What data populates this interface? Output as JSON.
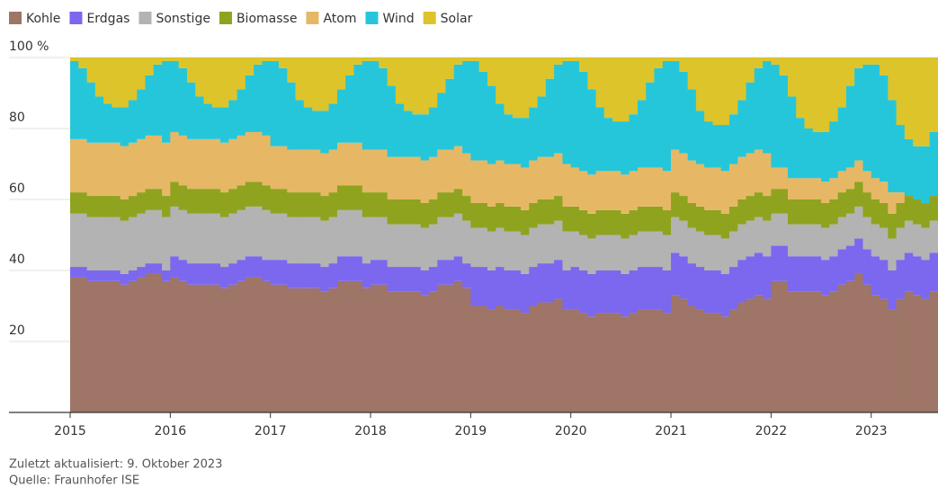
{
  "chart_data": {
    "type": "stacked-step-area",
    "series": [
      {
        "name": "Kohle",
        "color": "#9e7566",
        "values": [
          38,
          38,
          37,
          37,
          37,
          37,
          36,
          37,
          38,
          39,
          39,
          37,
          38,
          37,
          36,
          36,
          36,
          36,
          35,
          36,
          37,
          38,
          38,
          37,
          36,
          36,
          35,
          35,
          35,
          35,
          34,
          35,
          37,
          37,
          37,
          35,
          36,
          36,
          34,
          34,
          34,
          34,
          33,
          34,
          36,
          36,
          37,
          35,
          30,
          30,
          29,
          30,
          29,
          29,
          28,
          30,
          31,
          31,
          32,
          29,
          29,
          28,
          27,
          28,
          28,
          28,
          27,
          28,
          29,
          29,
          29,
          28,
          33,
          32,
          30,
          29,
          28,
          28,
          27,
          29,
          31,
          32,
          33,
          32,
          37,
          37,
          34,
          34,
          34,
          34,
          33,
          34,
          36,
          37,
          39,
          36,
          33,
          32,
          29,
          32,
          34,
          33,
          32,
          34
        ]
      },
      {
        "name": "Erdgas",
        "color": "#7b68ee",
        "values": [
          3,
          3,
          3,
          3,
          3,
          3,
          3,
          3,
          3,
          3,
          3,
          3,
          6,
          6,
          6,
          6,
          6,
          6,
          6,
          6,
          6,
          6,
          6,
          6,
          7,
          7,
          7,
          7,
          7,
          7,
          7,
          7,
          7,
          7,
          7,
          7,
          7,
          7,
          7,
          7,
          7,
          7,
          7,
          7,
          7,
          7,
          7,
          7,
          11,
          11,
          11,
          11,
          11,
          11,
          11,
          11,
          11,
          11,
          11,
          11,
          12,
          12,
          12,
          12,
          12,
          12,
          12,
          12,
          12,
          12,
          12,
          12,
          12,
          12,
          12,
          12,
          12,
          12,
          12,
          12,
          12,
          12,
          12,
          12,
          10,
          10,
          10,
          10,
          10,
          10,
          10,
          10,
          10,
          10,
          10,
          10,
          11,
          11,
          11,
          11,
          11,
          11,
          11,
          11
        ]
      },
      {
        "name": "Sonstige",
        "color": "#b3b3b3",
        "values": [
          15,
          15,
          15,
          15,
          15,
          15,
          15,
          15,
          15,
          15,
          15,
          15,
          14,
          14,
          14,
          14,
          14,
          14,
          14,
          14,
          14,
          14,
          14,
          14,
          13,
          13,
          13,
          13,
          13,
          13,
          13,
          13,
          13,
          13,
          13,
          13,
          12,
          12,
          12,
          12,
          12,
          12,
          12,
          12,
          12,
          12,
          12,
          12,
          11,
          11,
          11,
          11,
          11,
          11,
          11,
          11,
          11,
          11,
          11,
          11,
          10,
          10,
          10,
          10,
          10,
          10,
          10,
          10,
          10,
          10,
          10,
          10,
          10,
          10,
          10,
          10,
          10,
          10,
          10,
          10,
          10,
          10,
          10,
          10,
          9,
          9,
          9,
          9,
          9,
          9,
          9,
          9,
          9,
          9,
          9,
          9,
          9,
          9,
          9,
          9,
          9,
          9,
          9,
          9
        ]
      },
      {
        "name": "Biomasse",
        "color": "#8fa31f",
        "values": [
          6,
          6,
          6,
          6,
          6,
          6,
          6,
          6,
          6,
          6,
          6,
          6,
          7,
          7,
          7,
          7,
          7,
          7,
          7,
          7,
          7,
          7,
          7,
          7,
          7,
          7,
          7,
          7,
          7,
          7,
          7,
          7,
          7,
          7,
          7,
          7,
          7,
          7,
          7,
          7,
          7,
          7,
          7,
          7,
          7,
          7,
          7,
          7,
          7,
          7,
          7,
          7,
          7,
          7,
          7,
          7,
          7,
          7,
          7,
          7,
          7,
          7,
          7,
          7,
          7,
          7,
          7,
          7,
          7,
          7,
          7,
          7,
          7,
          7,
          7,
          7,
          7,
          7,
          7,
          7,
          7,
          7,
          7,
          7,
          7,
          7,
          7,
          7,
          7,
          7,
          7,
          7,
          7,
          7,
          7,
          7,
          7,
          7,
          7,
          7,
          7,
          7,
          7,
          7
        ]
      },
      {
        "name": "Atom",
        "color": "#e6b865",
        "values": [
          15,
          15,
          15,
          15,
          15,
          15,
          15,
          15,
          15,
          15,
          15,
          15,
          14,
          14,
          14,
          14,
          14,
          14,
          14,
          14,
          14,
          14,
          14,
          14,
          12,
          12,
          12,
          12,
          12,
          12,
          12,
          12,
          12,
          12,
          12,
          12,
          12,
          12,
          12,
          12,
          12,
          12,
          12,
          12,
          12,
          12,
          12,
          12,
          12,
          12,
          12,
          12,
          12,
          12,
          12,
          12,
          12,
          12,
          12,
          12,
          11,
          11,
          11,
          11,
          11,
          11,
          11,
          11,
          11,
          11,
          11,
          11,
          12,
          12,
          12,
          12,
          12,
          12,
          12,
          12,
          12,
          12,
          12,
          12,
          6,
          6,
          6,
          6,
          6,
          6,
          6,
          6,
          6,
          6,
          6,
          6,
          6,
          6,
          6,
          3,
          0,
          0,
          0,
          0
        ]
      },
      {
        "name": "Wind",
        "color": "#26c6da",
        "values": [
          22,
          20,
          17,
          13,
          11,
          10,
          11,
          12,
          14,
          17,
          20,
          23,
          20,
          19,
          16,
          12,
          10,
          9,
          10,
          11,
          13,
          16,
          19,
          21,
          24,
          22,
          19,
          14,
          12,
          11,
          12,
          13,
          15,
          19,
          22,
          25,
          25,
          23,
          20,
          15,
          13,
          12,
          13,
          14,
          16,
          20,
          23,
          26,
          28,
          25,
          22,
          16,
          14,
          13,
          14,
          15,
          17,
          22,
          25,
          29,
          30,
          28,
          24,
          18,
          15,
          14,
          15,
          16,
          19,
          24,
          28,
          31,
          25,
          23,
          20,
          15,
          13,
          12,
          13,
          14,
          16,
          20,
          23,
          26,
          29,
          26,
          23,
          17,
          14,
          13,
          14,
          16,
          18,
          23,
          26,
          30,
          32,
          30,
          26,
          19,
          16,
          15,
          16,
          18
        ]
      },
      {
        "name": "Solar",
        "color": "#dcc42a",
        "values": [
          1,
          3,
          7,
          11,
          13,
          14,
          14,
          12,
          9,
          5,
          2,
          1,
          1,
          3,
          7,
          11,
          13,
          14,
          14,
          12,
          9,
          5,
          2,
          1,
          1,
          3,
          7,
          12,
          14,
          15,
          15,
          13,
          9,
          5,
          2,
          1,
          1,
          3,
          8,
          13,
          15,
          16,
          16,
          14,
          10,
          6,
          2,
          1,
          1,
          4,
          8,
          13,
          16,
          17,
          17,
          14,
          11,
          6,
          2,
          1,
          1,
          4,
          9,
          14,
          17,
          18,
          18,
          16,
          12,
          7,
          3,
          1,
          1,
          4,
          9,
          15,
          18,
          19,
          19,
          16,
          12,
          7,
          3,
          1,
          2,
          5,
          11,
          17,
          20,
          21,
          21,
          18,
          14,
          8,
          3,
          2,
          2,
          5,
          12,
          19,
          23,
          25,
          25,
          21
        ]
      }
    ],
    "x": [
      2015,
      2015.083,
      2015.167,
      2015.25,
      2015.333,
      2015.417,
      2015.5,
      2015.583,
      2015.667,
      2015.75,
      2015.833,
      2015.917,
      2016,
      2016.083,
      2016.167,
      2016.25,
      2016.333,
      2016.417,
      2016.5,
      2016.583,
      2016.667,
      2016.75,
      2016.833,
      2016.917,
      2017,
      2017.083,
      2017.167,
      2017.25,
      2017.333,
      2017.417,
      2017.5,
      2017.583,
      2017.667,
      2017.75,
      2017.833,
      2017.917,
      2018,
      2018.083,
      2018.167,
      2018.25,
      2018.333,
      2018.417,
      2018.5,
      2018.583,
      2018.667,
      2018.75,
      2018.833,
      2018.917,
      2019,
      2019.083,
      2019.167,
      2019.25,
      2019.333,
      2019.417,
      2019.5,
      2019.583,
      2019.667,
      2019.75,
      2019.833,
      2019.917,
      2020,
      2020.083,
      2020.167,
      2020.25,
      2020.333,
      2020.417,
      2020.5,
      2020.583,
      2020.667,
      2020.75,
      2020.833,
      2020.917,
      2021,
      2021.083,
      2021.167,
      2021.25,
      2021.333,
      2021.417,
      2021.5,
      2021.583,
      2021.667,
      2021.75,
      2021.833,
      2021.917,
      2022,
      2022.083,
      2022.167,
      2022.25,
      2022.333,
      2022.417,
      2022.5,
      2022.583,
      2022.667,
      2022.75,
      2022.833,
      2022.917,
      2023,
      2023.083,
      2023.167,
      2023.25,
      2023.333,
      2023.417,
      2023.5,
      2023.583
    ],
    "xlim": [
      2015,
      2023.667
    ],
    "xticks": [
      2015,
      2016,
      2017,
      2018,
      2019,
      2020,
      2021,
      2022,
      2023
    ],
    "ylim": [
      0,
      100
    ],
    "yticks": [
      20,
      40,
      60,
      80,
      {
        "value": 100,
        "label": "100 %"
      }
    ],
    "grid": true,
    "legend": "top-left",
    "notes": [
      "Zuletzt aktualisiert: 9. Oktober 2023",
      "Quelle: Fraunhofer ISE"
    ]
  }
}
